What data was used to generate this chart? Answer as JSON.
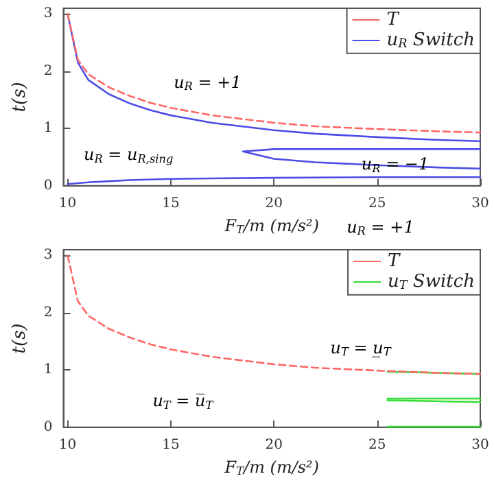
{
  "chart_data": [
    {
      "type": "line",
      "xlabel": "F$_{T}$/m (m/s²)",
      "ylabel": "t(s)",
      "xlim": [
        9.8,
        30
      ],
      "ylim": [
        0,
        3.1
      ],
      "xticks": [
        10,
        15,
        20,
        25,
        30
      ],
      "yticks": [
        0,
        1,
        2,
        3
      ],
      "grid": false,
      "legend": "top right",
      "marker": "none",
      "series": [
        {
          "name": "T",
          "color": "#ff6666",
          "line_style": "dashed",
          "x": [
            10,
            10.5,
            11,
            12,
            13,
            14,
            15,
            17,
            20,
            22,
            25,
            28,
            30
          ],
          "values": [
            3,
            2.2,
            1.95,
            1.72,
            1.57,
            1.45,
            1.36,
            1.23,
            1.1,
            1.04,
            0.99,
            0.95,
            0.93
          ]
        },
        {
          "name": "u$_{R}$ Switch",
          "color": "#4c4ce6",
          "line_style": "solid",
          "x": [
            10,
            10.5,
            11,
            12,
            13,
            14,
            15,
            17,
            20,
            22,
            25,
            28,
            30
          ],
          "values": [
            3,
            2.15,
            1.85,
            1.6,
            1.44,
            1.32,
            1.23,
            1.1,
            0.97,
            0.91,
            0.85,
            0.8,
            0.78
          ]
        },
        {
          "color": "#4c4ce6",
          "line_style": "solid",
          "x": [
            30,
            25,
            22,
            20,
            18.5,
            20,
            22,
            25,
            28,
            30
          ],
          "values": [
            0.64,
            0.64,
            0.64,
            0.64,
            0.6,
            0.47,
            0.41,
            0.36,
            0.32,
            0.3
          ]
        },
        {
          "color": "#4c4ce6",
          "line_style": "solid",
          "x": [
            10,
            11,
            12,
            13,
            15,
            17,
            20,
            25,
            30
          ],
          "values": [
            0.03,
            0.06,
            0.08,
            0.1,
            0.12,
            0.13,
            0.14,
            0.15,
            0.15
          ]
        }
      ],
      "annotations": [
        "u$_{R}$ = +1",
        "u$_{R}$ = u$_{R,sing}$",
        "u$_{R}$ = −1",
        "u$_{R}$ = +1"
      ]
    },
    {
      "type": "line",
      "xlabel": "F$_{T}$/m (m/s²)",
      "ylabel": "t(s)",
      "xlim": [
        9.8,
        30
      ],
      "ylim": [
        0,
        3.1
      ],
      "xticks": [
        10,
        15,
        20,
        25,
        30
      ],
      "yticks": [
        0,
        1,
        2,
        3
      ],
      "grid": false,
      "legend": "top right",
      "marker": "none",
      "series": [
        {
          "name": "T",
          "color": "#ff6666",
          "line_style": "dashed",
          "x": [
            10,
            10.5,
            11,
            12,
            13,
            14,
            15,
            17,
            20,
            22,
            25,
            28,
            30
          ],
          "values": [
            3,
            2.2,
            1.95,
            1.72,
            1.57,
            1.45,
            1.36,
            1.23,
            1.1,
            1.04,
            0.99,
            0.95,
            0.93
          ]
        },
        {
          "name": "u$_{T}$ Switch",
          "color": "#33dd33",
          "line_style": "solid",
          "x": [
            25.5,
            28,
            30
          ],
          "values": [
            0.97,
            0.95,
            0.93
          ]
        },
        {
          "color": "#33dd33",
          "line_style": "solid",
          "x": [
            25.5,
            30
          ],
          "values": [
            0.5,
            0.5
          ]
        },
        {
          "color": "#33dd33",
          "line_style": "solid",
          "x": [
            25.5,
            30
          ],
          "values": [
            0.47,
            0.44
          ]
        },
        {
          "color": "#33dd33",
          "line_style": "solid",
          "x": [
            25.5,
            30
          ],
          "values": [
            0.01,
            0.01
          ]
        }
      ],
      "annotations": [
        "u$_{T}$ = u̲$_{T}$",
        "u$_{T}$ = u̅$_{T}$"
      ]
    }
  ]
}
